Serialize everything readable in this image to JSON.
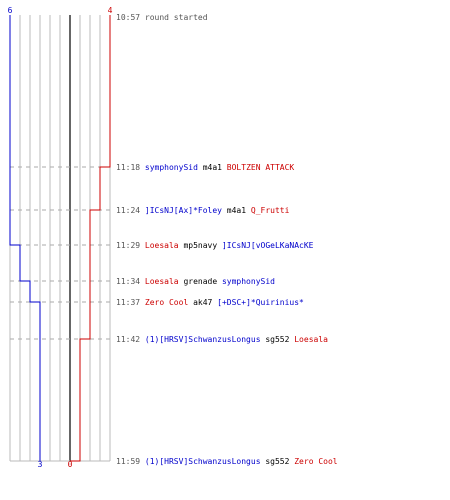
{
  "colors": {
    "blue_team": "#0000cc",
    "red_team": "#cc0000",
    "neutral_text": "#000000",
    "time_text": "#555555",
    "grid": "#bbbbbb",
    "dash": "#aaaaaa",
    "center_line": "#666666"
  },
  "scores": {
    "blue_start": "6",
    "red_start": "4",
    "blue_end": "3",
    "red_end": "0"
  },
  "events": [
    {
      "time": "10:57",
      "parts": [
        {
          "text": "round started",
          "team": "time"
        }
      ]
    },
    {
      "time": "11:18",
      "parts": [
        {
          "text": "symphonySid",
          "team": "blue"
        },
        {
          "text": "m4a1",
          "team": "neutral"
        },
        {
          "text": "BOLTZEN ATTACK",
          "team": "red"
        }
      ]
    },
    {
      "time": "11:24",
      "parts": [
        {
          "text": "]ICsNJ[Ax]*Foley",
          "team": "blue"
        },
        {
          "text": "m4a1",
          "team": "neutral"
        },
        {
          "text": "Q_Frutti",
          "team": "red"
        }
      ]
    },
    {
      "time": "11:29",
      "parts": [
        {
          "text": "Loesala",
          "team": "red"
        },
        {
          "text": "mp5navy",
          "team": "neutral"
        },
        {
          "text": "]ICsNJ[vOGeLKaNAcKE",
          "team": "blue"
        }
      ]
    },
    {
      "time": "11:34",
      "parts": [
        {
          "text": "Loesala",
          "team": "red"
        },
        {
          "text": "grenade",
          "team": "neutral"
        },
        {
          "text": "symphonySid",
          "team": "blue"
        }
      ]
    },
    {
      "time": "11:37",
      "parts": [
        {
          "text": "Zero Cool",
          "team": "red"
        },
        {
          "text": "ak47",
          "team": "neutral"
        },
        {
          "text": "[+DSC+]*Quirinius*",
          "team": "blue"
        }
      ]
    },
    {
      "time": "11:42",
      "parts": [
        {
          "text": "(1)[HRSV]SchwanzusLongus",
          "team": "blue"
        },
        {
          "text": "sg552",
          "team": "neutral"
        },
        {
          "text": "Loesala",
          "team": "red"
        }
      ]
    },
    {
      "time": "11:59",
      "parts": [
        {
          "text": "(1)[HRSV]SchwanzusLongus",
          "team": "blue"
        },
        {
          "text": "sg552",
          "team": "neutral"
        },
        {
          "text": "Zero Cool",
          "team": "red"
        }
      ]
    }
  ]
}
